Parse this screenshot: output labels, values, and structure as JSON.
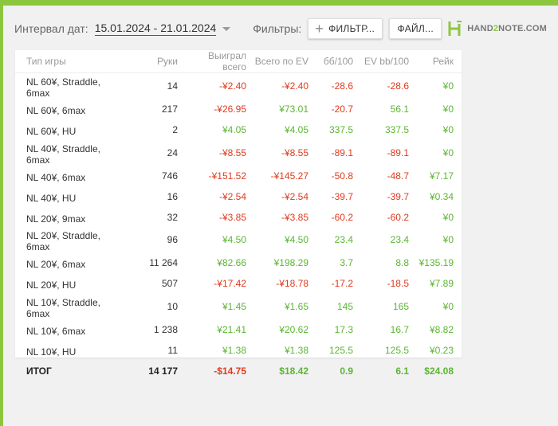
{
  "toolbar": {
    "interval_label": "Интервал дат:",
    "date_range": "15.01.2024 - 21.01.2024",
    "filters_label": "Фильтры:",
    "filter_button": "ФИЛЬТР...",
    "file_button": "ФАЙЛ...",
    "logo_text_a": "HAND",
    "logo_text_b": "2",
    "logo_text_c": "NOTE.COM"
  },
  "colors": {
    "accent_green": "#8cc63f",
    "positive": "#5cb533",
    "negative": "#e03a1e"
  },
  "table": {
    "headers": [
      "Тип игры",
      "Руки",
      "Выиграл всего",
      "Всего по EV",
      "бб/100",
      "EV bb/100",
      "Рейк"
    ],
    "rows": [
      {
        "name": "NL 60¥, Straddle, 6max",
        "hands": "14",
        "won": "-¥2.40",
        "ev": "-¥2.40",
        "bb": "-28.6",
        "evbb": "-28.6",
        "rake": "¥0"
      },
      {
        "name": "NL 60¥, 6max",
        "hands": "217",
        "won": "-¥26.95",
        "ev": "¥73.01",
        "bb": "-20.7",
        "evbb": "56.1",
        "rake": "¥0"
      },
      {
        "name": "NL 60¥, HU",
        "hands": "2",
        "won": "¥4.05",
        "ev": "¥4.05",
        "bb": "337.5",
        "evbb": "337.5",
        "rake": "¥0"
      },
      {
        "name": "NL 40¥, Straddle, 6max",
        "hands": "24",
        "won": "-¥8.55",
        "ev": "-¥8.55",
        "bb": "-89.1",
        "evbb": "-89.1",
        "rake": "¥0"
      },
      {
        "name": "NL 40¥, 6max",
        "hands": "746",
        "won": "-¥151.52",
        "ev": "-¥145.27",
        "bb": "-50.8",
        "evbb": "-48.7",
        "rake": "¥7.17"
      },
      {
        "name": "NL 40¥, HU",
        "hands": "16",
        "won": "-¥2.54",
        "ev": "-¥2.54",
        "bb": "-39.7",
        "evbb": "-39.7",
        "rake": "¥0.34"
      },
      {
        "name": "NL 20¥, 9max",
        "hands": "32",
        "won": "-¥3.85",
        "ev": "-¥3.85",
        "bb": "-60.2",
        "evbb": "-60.2",
        "rake": "¥0"
      },
      {
        "name": "NL 20¥, Straddle, 6max",
        "hands": "96",
        "won": "¥4.50",
        "ev": "¥4.50",
        "bb": "23.4",
        "evbb": "23.4",
        "rake": "¥0"
      },
      {
        "name": "NL 20¥, 6max",
        "hands": "11 264",
        "won": "¥82.66",
        "ev": "¥198.29",
        "bb": "3.7",
        "evbb": "8.8",
        "rake": "¥135.19"
      },
      {
        "name": "NL 20¥, HU",
        "hands": "507",
        "won": "-¥17.42",
        "ev": "-¥18.78",
        "bb": "-17.2",
        "evbb": "-18.5",
        "rake": "¥7.89"
      },
      {
        "name": "NL 10¥, Straddle, 6max",
        "hands": "10",
        "won": "¥1.45",
        "ev": "¥1.65",
        "bb": "145",
        "evbb": "165",
        "rake": "¥0"
      },
      {
        "name": "NL 10¥, 6max",
        "hands": "1 238",
        "won": "¥21.41",
        "ev": "¥20.62",
        "bb": "17.3",
        "evbb": "16.7",
        "rake": "¥8.82"
      },
      {
        "name": "NL 10¥, HU",
        "hands": "11",
        "won": "¥1.38",
        "ev": "¥1.38",
        "bb": "125.5",
        "evbb": "125.5",
        "rake": "¥0.23"
      }
    ],
    "total": {
      "name": "ИТОГ",
      "hands": "14 177",
      "won": "-$14.75",
      "ev": "$18.42",
      "bb": "0.9",
      "evbb": "6.1",
      "rake": "$24.08"
    }
  }
}
